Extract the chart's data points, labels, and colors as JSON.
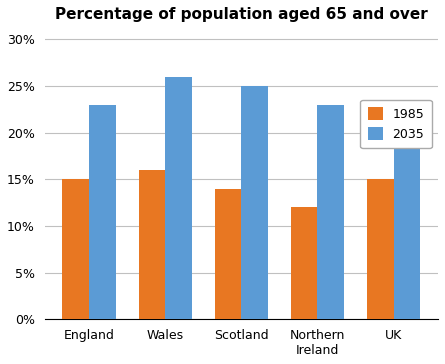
{
  "title": "Percentage of population aged 65 and over",
  "categories": [
    "England",
    "Wales",
    "Scotland",
    "Northern\nIreland",
    "UK"
  ],
  "series": {
    "1985": [
      15,
      16,
      14,
      12,
      15
    ],
    "2035": [
      23,
      26,
      25,
      23,
      23
    ]
  },
  "colors": {
    "1985": "#E87722",
    "2035": "#5B9BD5"
  },
  "ylim": [
    0,
    31
  ],
  "yticks": [
    0,
    5,
    10,
    15,
    20,
    25,
    30
  ],
  "ytick_labels": [
    "0%",
    "5%",
    "10%",
    "15%",
    "20%",
    "25%",
    "30%"
  ],
  "title_fontsize": 11,
  "legend_fontsize": 9,
  "tick_fontsize": 9,
  "bar_width": 0.35,
  "background_color": "#ffffff",
  "grid_color": "#c0c0c0"
}
